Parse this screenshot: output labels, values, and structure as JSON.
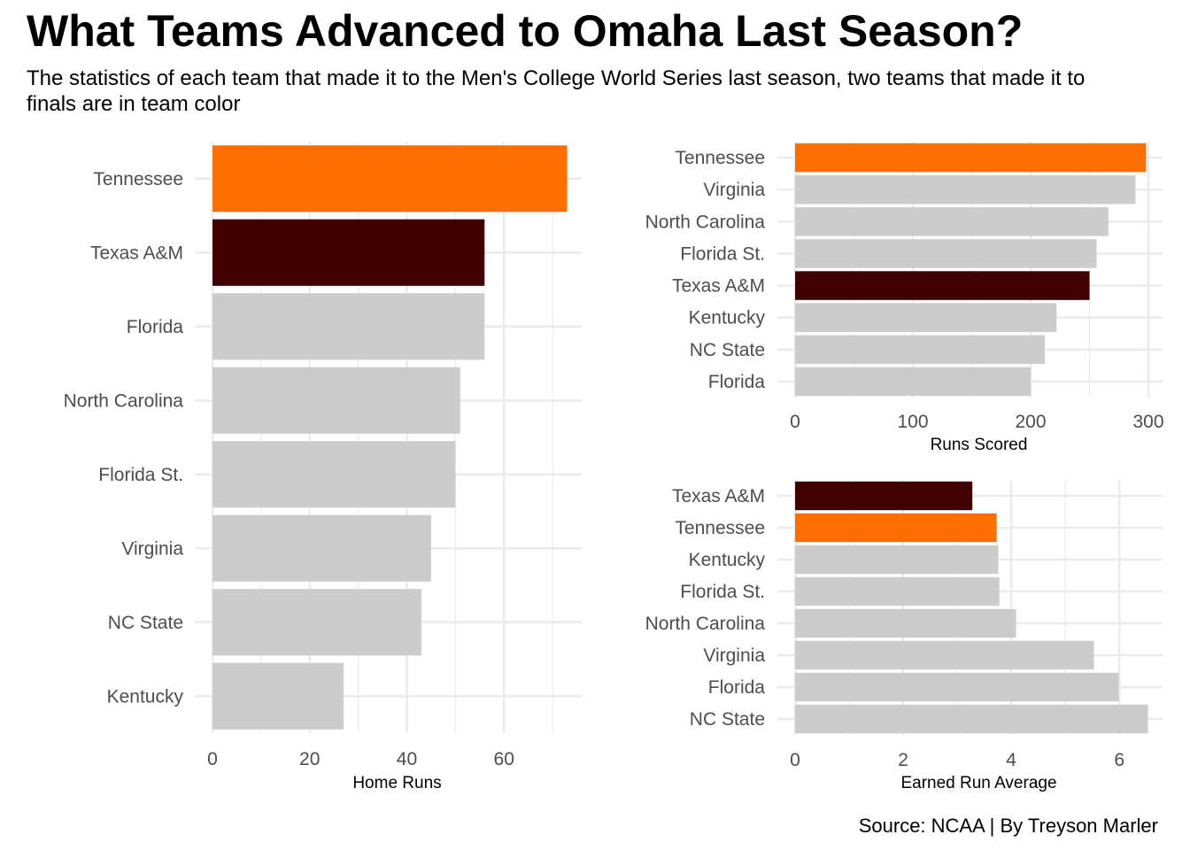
{
  "header": {
    "title": "What Teams Advanced to Omaha Last Season?",
    "subtitle": "The statistics of each team that made it to the Men's College World Series last season, two teams that made it to finals are in team color"
  },
  "footer": {
    "caption": "Source: NCAA | By Treyson Marler"
  },
  "colors": {
    "tennessee": "#FF6F00",
    "texas_am": "#3F0000",
    "other": "#CCCCCC",
    "grid": "#EBEBEB"
  },
  "chart_data": [
    {
      "id": "home-runs",
      "type": "bar",
      "orientation": "horizontal",
      "xlabel": "Home Runs",
      "xlim": [
        0,
        76
      ],
      "xticks": [
        0,
        20,
        40,
        60
      ],
      "grid": true,
      "categories": [
        "Tennessee",
        "Texas A&M",
        "Florida",
        "North Carolina",
        "Florida St.",
        "Virginia",
        "NC State",
        "Kentucky"
      ],
      "values": [
        73,
        56,
        56,
        51,
        50,
        45,
        43,
        27
      ],
      "bar_colors": [
        "#FF6F00",
        "#3F0000",
        "#CCCCCC",
        "#CCCCCC",
        "#CCCCCC",
        "#CCCCCC",
        "#CCCCCC",
        "#CCCCCC"
      ]
    },
    {
      "id": "runs-scored",
      "type": "bar",
      "orientation": "horizontal",
      "xlabel": "Runs Scored",
      "xlim": [
        0,
        312
      ],
      "xticks": [
        0,
        100,
        200,
        300
      ],
      "grid": true,
      "categories": [
        "Tennessee",
        "Virginia",
        "North Carolina",
        "Florida St.",
        "Texas A&M",
        "Kentucky",
        "NC State",
        "Florida"
      ],
      "values": [
        298,
        289,
        266,
        256,
        250,
        222,
        212,
        200
      ],
      "bar_colors": [
        "#FF6F00",
        "#CCCCCC",
        "#CCCCCC",
        "#CCCCCC",
        "#3F0000",
        "#CCCCCC",
        "#CCCCCC",
        "#CCCCCC"
      ]
    },
    {
      "id": "earned-run-average",
      "type": "bar",
      "orientation": "horizontal",
      "xlabel": "Earned Run Average",
      "xlim": [
        0,
        6.8
      ],
      "xticks": [
        0,
        2,
        4,
        6
      ],
      "grid": true,
      "categories": [
        "Texas A&M",
        "Tennessee",
        "Kentucky",
        "Florida St.",
        "North Carolina",
        "Virginia",
        "Florida",
        "NC State"
      ],
      "values": [
        3.28,
        3.73,
        3.76,
        3.78,
        4.09,
        5.53,
        5.99,
        6.53
      ],
      "bar_colors": [
        "#3F0000",
        "#FF6F00",
        "#CCCCCC",
        "#CCCCCC",
        "#CCCCCC",
        "#CCCCCC",
        "#CCCCCC",
        "#CCCCCC"
      ]
    }
  ]
}
